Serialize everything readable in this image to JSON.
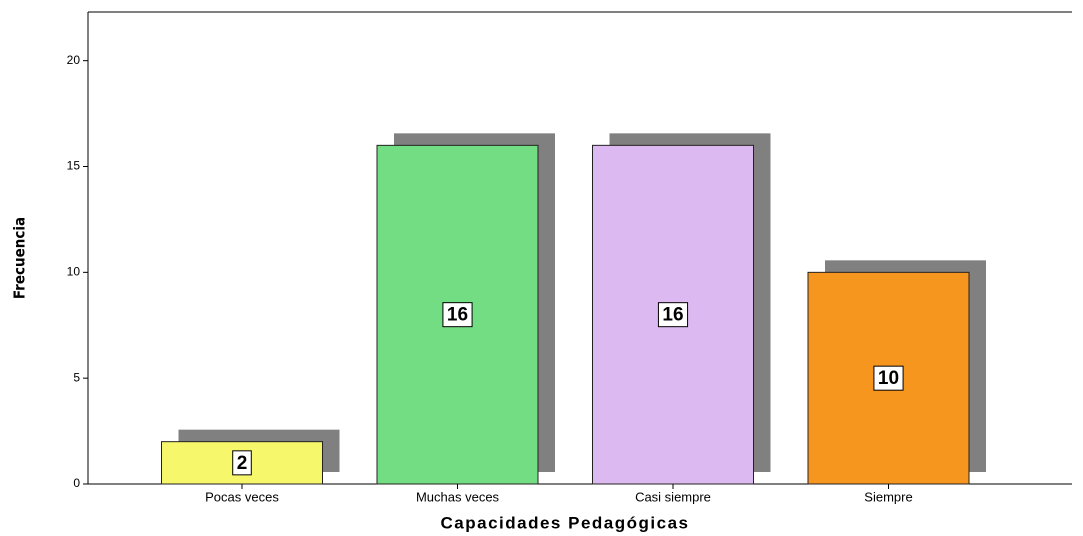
{
  "chart_data": {
    "type": "bar",
    "x_label": "Capacidades Pedagógicas",
    "y_label": "Frecuencia",
    "categories": [
      "Pocas veces",
      "Muchas veces",
      "Casi siempre",
      "Siempre"
    ],
    "values": [
      2,
      16,
      16,
      10
    ],
    "colors": [
      "#f7f76c",
      "#72dd82",
      "#ddb9f1",
      "#f7961e"
    ],
    "ylim": [
      0,
      22.3
    ],
    "yticks": [
      0,
      5,
      10,
      15,
      20
    ],
    "grid": false
  }
}
